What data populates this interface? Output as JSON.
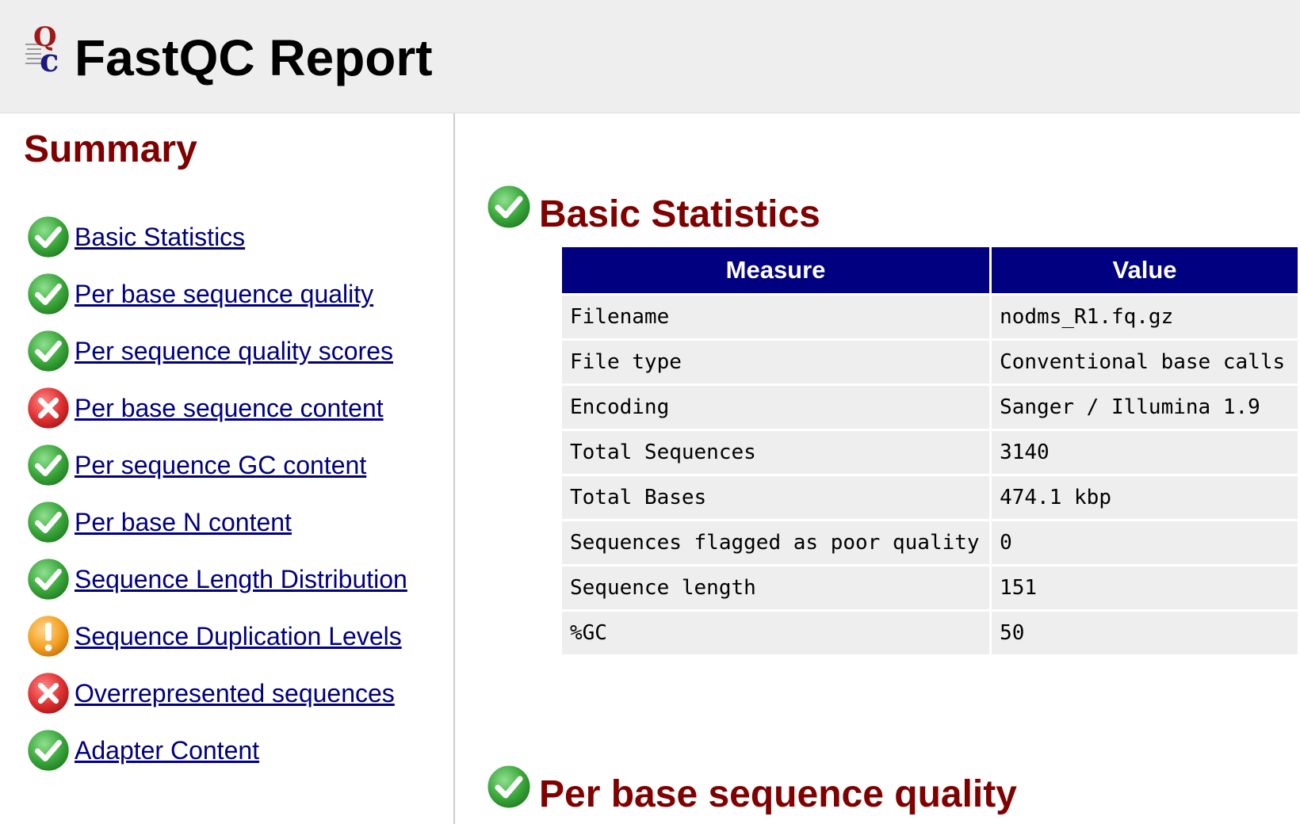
{
  "header": {
    "title": "FastQC Report"
  },
  "colors": {
    "header_bg": "#eeeeee",
    "heading": "#800000",
    "link": "#000080",
    "table_header_bg": "#000080",
    "table_row_bg": "#eeeeee",
    "pass": "#3aa63a",
    "fail": "#e03030",
    "warn": "#f5a020"
  },
  "sidebar": {
    "title": "Summary",
    "items": [
      {
        "label": "Basic Statistics",
        "status": "pass",
        "icon": "pass-check-icon"
      },
      {
        "label": "Per base sequence quality",
        "status": "pass",
        "icon": "pass-check-icon"
      },
      {
        "label": "Per sequence quality scores",
        "status": "pass",
        "icon": "pass-check-icon"
      },
      {
        "label": "Per base sequence content",
        "status": "fail",
        "icon": "fail-cross-icon"
      },
      {
        "label": "Per sequence GC content",
        "status": "pass",
        "icon": "pass-check-icon"
      },
      {
        "label": "Per base N content",
        "status": "pass",
        "icon": "pass-check-icon"
      },
      {
        "label": "Sequence Length Distribution",
        "status": "pass",
        "icon": "pass-check-icon"
      },
      {
        "label": "Sequence Duplication Levels",
        "status": "warn",
        "icon": "warn-exclamation-icon"
      },
      {
        "label": "Overrepresented sequences",
        "status": "fail",
        "icon": "fail-cross-icon"
      },
      {
        "label": "Adapter Content",
        "status": "pass",
        "icon": "pass-check-icon"
      }
    ]
  },
  "main": {
    "sections": [
      {
        "title": "Basic Statistics",
        "status": "pass"
      },
      {
        "title": "Per base sequence quality",
        "status": "pass"
      }
    ],
    "basic_stats": {
      "headers": [
        "Measure",
        "Value"
      ],
      "rows": [
        [
          "Filename",
          "nodms_R1.fq.gz"
        ],
        [
          "File type",
          "Conventional base calls"
        ],
        [
          "Encoding",
          "Sanger / Illumina 1.9"
        ],
        [
          "Total Sequences",
          "3140"
        ],
        [
          "Total Bases",
          "474.1 kbp"
        ],
        [
          "Sequences flagged as poor quality",
          "0"
        ],
        [
          "Sequence length",
          "151"
        ],
        [
          "%GC",
          "50"
        ]
      ]
    }
  }
}
